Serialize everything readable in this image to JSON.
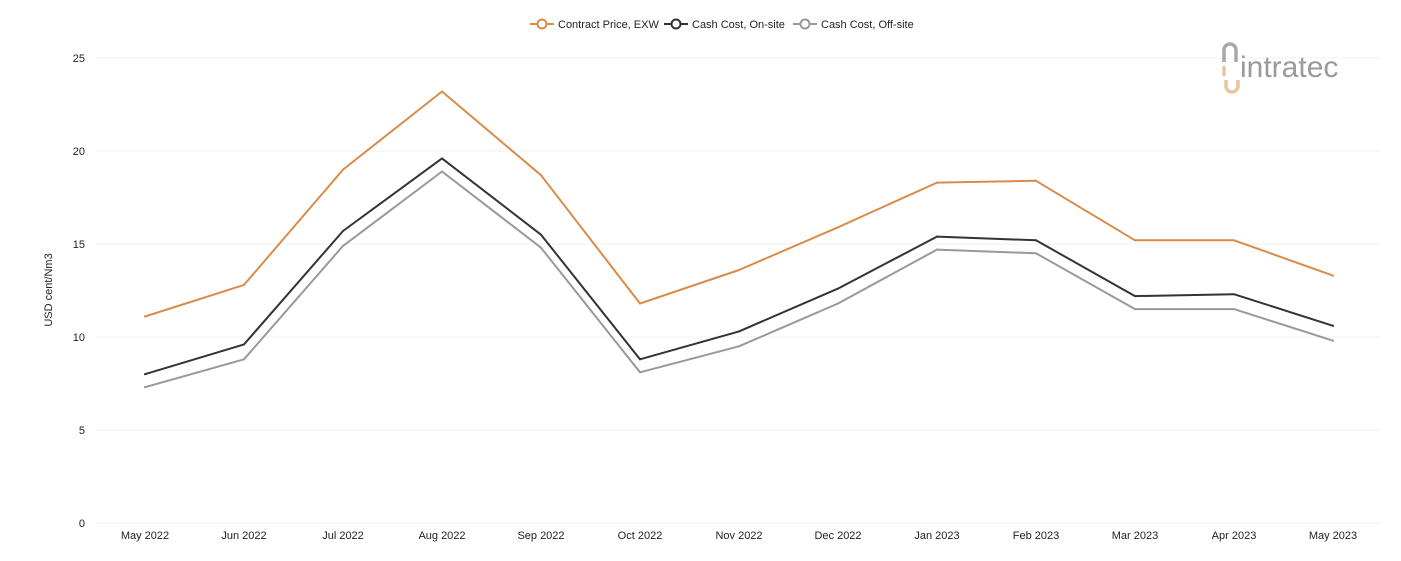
{
  "chart_data": {
    "type": "line",
    "title": "",
    "xlabel": "",
    "ylabel": "USD cent/Nm3",
    "ylim": [
      0,
      25
    ],
    "yticks": [
      "0",
      "5",
      "10",
      "15",
      "20",
      "25"
    ],
    "grid": true,
    "legend_position": "top-center",
    "categories": [
      "May 2022",
      "Jun 2022",
      "Jul 2022",
      "Aug 2022",
      "Sep 2022",
      "Oct 2022",
      "Nov 2022",
      "Dec 2022",
      "Jan 2023",
      "Feb 2023",
      "Mar 2023",
      "Apr 2023",
      "May 2023"
    ],
    "series": [
      {
        "name": "Contract Price, EXW",
        "color": "#d98c4a",
        "values": [
          11.1,
          12.8,
          19.0,
          23.2,
          18.7,
          11.8,
          13.6,
          15.9,
          18.3,
          18.4,
          15.2,
          15.2,
          13.3
        ]
      },
      {
        "name": "Cash Cost, On-site",
        "color": "#333333",
        "values": [
          8.0,
          9.6,
          15.7,
          19.6,
          15.5,
          8.8,
          10.3,
          12.6,
          15.4,
          15.2,
          12.2,
          12.3,
          10.6
        ]
      },
      {
        "name": "Cash Cost, Off-site",
        "color": "#999999",
        "values": [
          7.3,
          8.8,
          14.9,
          18.9,
          14.8,
          8.1,
          9.5,
          11.8,
          14.7,
          14.5,
          11.5,
          11.5,
          9.8
        ]
      }
    ]
  },
  "logo": {
    "text": "intratec",
    "icon": "intratec-logo-icon"
  }
}
